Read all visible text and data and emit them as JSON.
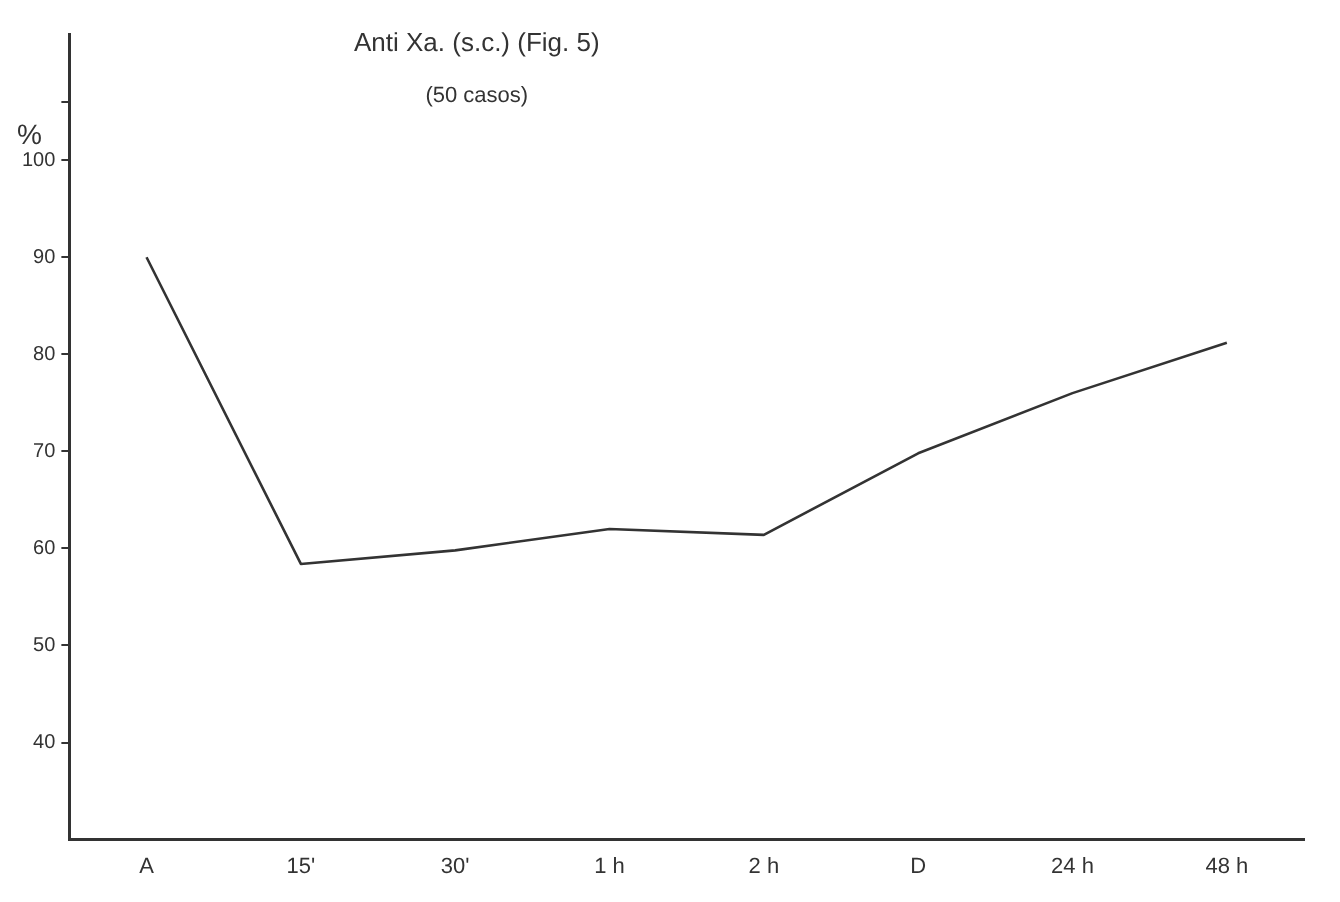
{
  "chart_data": {
    "type": "line",
    "title": "Anti Xa. (s.c.) (Fig. 5)",
    "subtitle": "(50 casos)",
    "ylabel": "%",
    "categories": [
      "A",
      "15'",
      "30'",
      "1 h",
      "2 h",
      "D",
      "24 h",
      "48 h"
    ],
    "series": [
      {
        "color": "#333333",
        "values": [
          90,
          58.4,
          59.8,
          62,
          61.4,
          69.8,
          76,
          81.2
        ]
      }
    ],
    "ylim": [
      30,
      113
    ],
    "yticks": [
      40,
      50,
      60,
      70,
      80,
      90,
      100,
      {
        "value": 106,
        "label": null
      }
    ],
    "grid": false,
    "legend": false,
    "marker": "none",
    "line_style": "solid"
  }
}
